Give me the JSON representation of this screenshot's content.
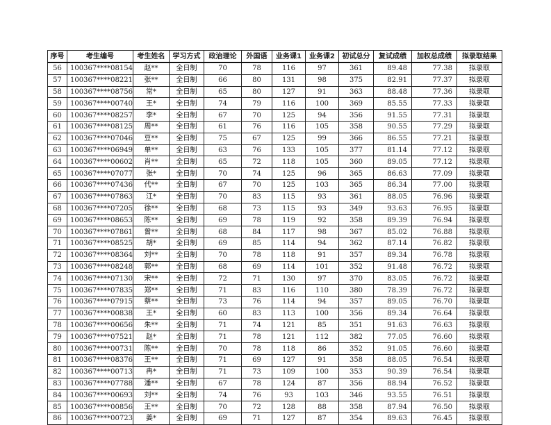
{
  "table": {
    "headers": [
      "序号",
      "考生编号",
      "考生姓名",
      "学习方式",
      "政治理论",
      "外国语",
      "业务课1",
      "业务课2",
      "初试总分",
      "复试成绩",
      "加权总成绩",
      "拟录取结果"
    ],
    "rows": [
      [
        "56",
        "100367****08154",
        "赵**",
        "全日制",
        "70",
        "78",
        "116",
        "97",
        "361",
        "89.48",
        "77.38",
        "拟录取"
      ],
      [
        "57",
        "100367****08221",
        "张**",
        "全日制",
        "66",
        "80",
        "131",
        "98",
        "375",
        "82.91",
        "77.37",
        "拟录取"
      ],
      [
        "58",
        "100367****08756",
        "常*",
        "全日制",
        "65",
        "80",
        "127",
        "91",
        "363",
        "88.48",
        "77.36",
        "拟录取"
      ],
      [
        "59",
        "100367****00740",
        "王*",
        "全日制",
        "74",
        "79",
        "116",
        "100",
        "369",
        "85.55",
        "77.33",
        "拟录取"
      ],
      [
        "60",
        "100367****08257",
        "李*",
        "全日制",
        "67",
        "70",
        "125",
        "94",
        "356",
        "91.55",
        "77.31",
        "拟录取"
      ],
      [
        "61",
        "100367****08125",
        "周**",
        "全日制",
        "61",
        "76",
        "116",
        "105",
        "358",
        "90.55",
        "77.29",
        "拟录取"
      ],
      [
        "62",
        "100367****07046",
        "豆**",
        "全日制",
        "75",
        "67",
        "125",
        "99",
        "366",
        "86.55",
        "77.21",
        "拟录取"
      ],
      [
        "63",
        "100367****06949",
        "单**",
        "全日制",
        "63",
        "76",
        "133",
        "105",
        "377",
        "81.14",
        "77.12",
        "拟录取"
      ],
      [
        "64",
        "100367****00602",
        "肖**",
        "全日制",
        "65",
        "72",
        "118",
        "105",
        "360",
        "89.05",
        "77.12",
        "拟录取"
      ],
      [
        "65",
        "100367****07077",
        "张*",
        "全日制",
        "70",
        "74",
        "125",
        "96",
        "365",
        "86.63",
        "77.09",
        "拟录取"
      ],
      [
        "66",
        "100367****07436",
        "代**",
        "全日制",
        "67",
        "70",
        "125",
        "103",
        "365",
        "86.34",
        "77.00",
        "拟录取"
      ],
      [
        "67",
        "100367****07863",
        "江*",
        "全日制",
        "70",
        "83",
        "115",
        "93",
        "361",
        "88.05",
        "76.96",
        "拟录取"
      ],
      [
        "68",
        "100367****07205",
        "徐**",
        "全日制",
        "68",
        "73",
        "115",
        "93",
        "349",
        "93.63",
        "76.95",
        "拟录取"
      ],
      [
        "69",
        "100367****08653",
        "陈**",
        "全日制",
        "69",
        "78",
        "119",
        "92",
        "358",
        "89.39",
        "76.94",
        "拟录取"
      ],
      [
        "70",
        "100367****07861",
        "曾**",
        "全日制",
        "68",
        "84",
        "117",
        "98",
        "367",
        "85.02",
        "76.88",
        "拟录取"
      ],
      [
        "71",
        "100367****08525",
        "胡*",
        "全日制",
        "69",
        "85",
        "114",
        "94",
        "362",
        "87.14",
        "76.82",
        "拟录取"
      ],
      [
        "72",
        "100367****08364",
        "刘**",
        "全日制",
        "70",
        "78",
        "118",
        "91",
        "357",
        "89.34",
        "76.78",
        "拟录取"
      ],
      [
        "73",
        "100367****08248",
        "郭**",
        "全日制",
        "68",
        "69",
        "114",
        "101",
        "352",
        "91.48",
        "76.72",
        "拟录取"
      ],
      [
        "74",
        "100367****07130",
        "宋**",
        "全日制",
        "72",
        "71",
        "130",
        "97",
        "370",
        "83.05",
        "76.72",
        "拟录取"
      ],
      [
        "75",
        "100367****07835",
        "郑**",
        "全日制",
        "71",
        "83",
        "116",
        "110",
        "380",
        "78.39",
        "76.72",
        "拟录取"
      ],
      [
        "76",
        "100367****07915",
        "蔡**",
        "全日制",
        "73",
        "76",
        "114",
        "94",
        "357",
        "89.05",
        "76.70",
        "拟录取"
      ],
      [
        "77",
        "100367****00838",
        "王*",
        "全日制",
        "60",
        "83",
        "113",
        "100",
        "356",
        "89.34",
        "76.64",
        "拟录取"
      ],
      [
        "78",
        "100367****00656",
        "朱**",
        "全日制",
        "71",
        "74",
        "121",
        "85",
        "351",
        "91.63",
        "76.63",
        "拟录取"
      ],
      [
        "79",
        "100367****07521",
        "赵*",
        "全日制",
        "71",
        "78",
        "121",
        "112",
        "382",
        "77.05",
        "76.60",
        "拟录取"
      ],
      [
        "80",
        "100367****00731",
        "陈**",
        "全日制",
        "70",
        "78",
        "118",
        "86",
        "352",
        "91.05",
        "76.60",
        "拟录取"
      ],
      [
        "81",
        "100367****08376",
        "王**",
        "全日制",
        "71",
        "69",
        "127",
        "91",
        "358",
        "88.05",
        "76.54",
        "拟录取"
      ],
      [
        "82",
        "100367****00713",
        "冉*",
        "全日制",
        "71",
        "73",
        "109",
        "100",
        "353",
        "90.39",
        "76.54",
        "拟录取"
      ],
      [
        "83",
        "100367****07788",
        "潘**",
        "全日制",
        "67",
        "78",
        "124",
        "87",
        "356",
        "88.94",
        "76.52",
        "拟录取"
      ],
      [
        "84",
        "100367****00693",
        "刘**",
        "全日制",
        "74",
        "76",
        "93",
        "103",
        "346",
        "93.55",
        "76.51",
        "拟录取"
      ],
      [
        "85",
        "100367****00856",
        "王**",
        "全日制",
        "70",
        "72",
        "128",
        "88",
        "358",
        "87.94",
        "76.50",
        "拟录取"
      ],
      [
        "86",
        "100367****00723",
        "姜*",
        "全日制",
        "69",
        "71",
        "127",
        "87",
        "354",
        "89.63",
        "76.45",
        "拟录取"
      ]
    ]
  }
}
